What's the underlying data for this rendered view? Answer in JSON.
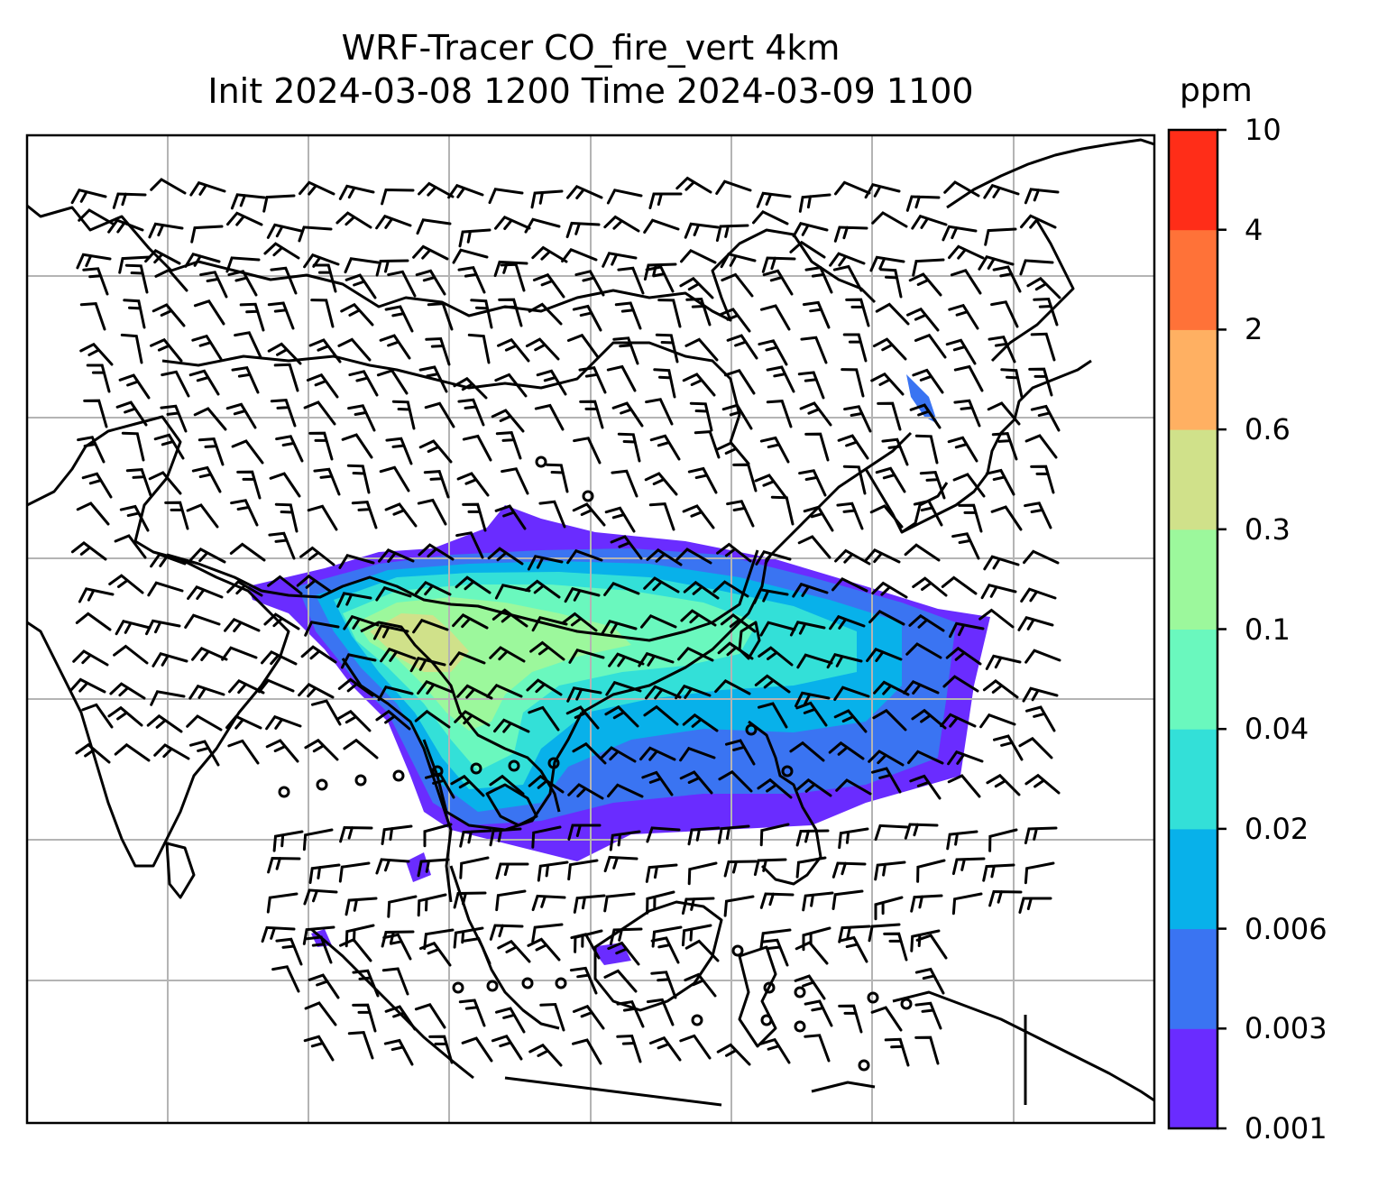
{
  "title": {
    "line1": "WRF-Tracer CO_fire_vert 4km",
    "line2": "Init 2024-03-08 1200 Time 2024-03-09 1100"
  },
  "colorbar": {
    "unit": "ppm",
    "levels": [
      "0.001",
      "0.003",
      "0.006",
      "0.02",
      "0.04",
      "0.1",
      "0.3",
      "0.6",
      "2",
      "4",
      "10"
    ],
    "colors": [
      "#6a2cff",
      "#3a74f2",
      "#08b1ea",
      "#33e0d8",
      "#6af8be",
      "#9cf89c",
      "#d0e18a",
      "#ffb062",
      "#ff7238",
      "#ff2d18"
    ]
  },
  "map": {
    "field": "CO_fire_vert",
    "resolution": "4km",
    "features": [
      "coastlines",
      "country-borders",
      "lat-lon-gridlines",
      "wind-barbs",
      "tracer-concentration-fill"
    ],
    "gridlines": "on"
  }
}
